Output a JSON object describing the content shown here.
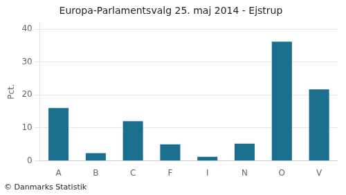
{
  "chart_data": {
    "type": "bar",
    "title": "Europa-Parlamentsvalg 25. maj 2014 - Ejstrup",
    "categories": [
      "A",
      "B",
      "C",
      "F",
      "I",
      "N",
      "O",
      "V"
    ],
    "values": [
      16.0,
      2.3,
      12.0,
      5.0,
      1.2,
      5.2,
      36.2,
      21.7
    ],
    "color": "#1a6e8e",
    "ylabel": "Pct.",
    "footer": "© Danmarks Statistik",
    "ylim": [
      0,
      42
    ],
    "yticks": [
      0,
      10,
      20,
      30,
      40
    ],
    "grid": true
  }
}
